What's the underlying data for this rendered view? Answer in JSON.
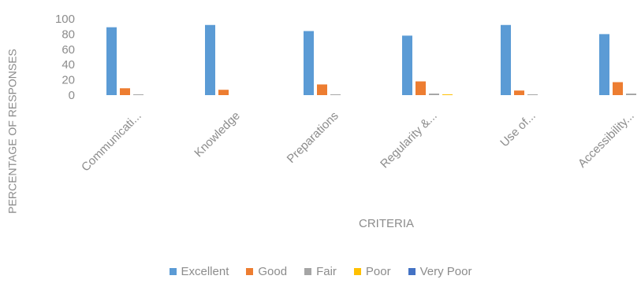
{
  "chart_data": {
    "type": "bar",
    "categories": [
      "Communicati...",
      "Knowledge",
      "Preparations",
      "Regularity &...",
      "Use of...",
      "Accessibility..."
    ],
    "series": [
      {
        "name": "Excellent",
        "color": "#5b9bd5",
        "values": [
          89,
          92,
          84,
          78,
          92,
          80
        ]
      },
      {
        "name": "Good",
        "color": "#ed7d31",
        "values": [
          9,
          7,
          14,
          18,
          6,
          17
        ]
      },
      {
        "name": "Fair",
        "color": "#a5a5a5",
        "values": [
          1,
          0,
          1,
          2,
          1,
          2
        ]
      },
      {
        "name": "Poor",
        "color": "#ffc000",
        "values": [
          0,
          0,
          0,
          1,
          0,
          0
        ]
      },
      {
        "name": "Very Poor",
        "color": "#4472c4",
        "values": [
          0,
          0,
          0,
          0,
          0,
          0
        ]
      }
    ],
    "xlabel": "CRITERIA",
    "ylabel": "PERCENTAGE OF RESPONSES",
    "ylim": [
      0,
      100
    ],
    "yticks": [
      "100",
      "80",
      "60",
      "40",
      "20",
      "0"
    ],
    "grid": false,
    "legend_position": "bottom"
  }
}
